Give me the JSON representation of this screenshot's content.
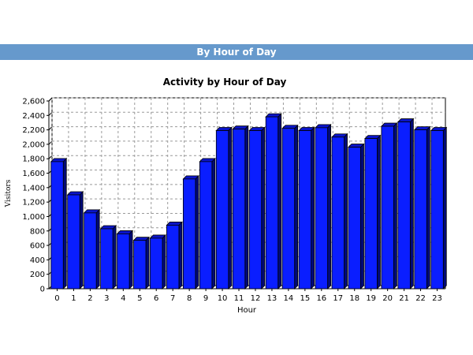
{
  "section": {
    "header": "By Hour of Day"
  },
  "colors": {
    "header_bg": "#6699cc",
    "bar_fill": "#0a1eff",
    "bar_top": "#0a14c8",
    "bar_side": "#000a78",
    "grid": "#9a9a9a"
  },
  "chart_data": {
    "type": "bar",
    "title": "Activity by Hour of Day",
    "xlabel": "Hour",
    "ylabel": "Visitors",
    "categories": [
      "0",
      "1",
      "2",
      "3",
      "4",
      "5",
      "6",
      "7",
      "8",
      "9",
      "10",
      "11",
      "12",
      "13",
      "14",
      "15",
      "16",
      "17",
      "18",
      "19",
      "20",
      "21",
      "22",
      "23"
    ],
    "values": [
      1760,
      1300,
      1050,
      830,
      760,
      670,
      700,
      880,
      1520,
      1760,
      2190,
      2210,
      2190,
      2380,
      2220,
      2190,
      2230,
      2100,
      1960,
      2080,
      2250,
      2310,
      2200,
      2190
    ],
    "ylim": [
      0,
      2600
    ],
    "yticks": [
      "0",
      "200",
      "400",
      "600",
      "800",
      "1,000",
      "1,200",
      "1,400",
      "1,600",
      "1,800",
      "2,000",
      "2,200",
      "2,400",
      "2,600"
    ],
    "grid": true,
    "legend": "none"
  }
}
